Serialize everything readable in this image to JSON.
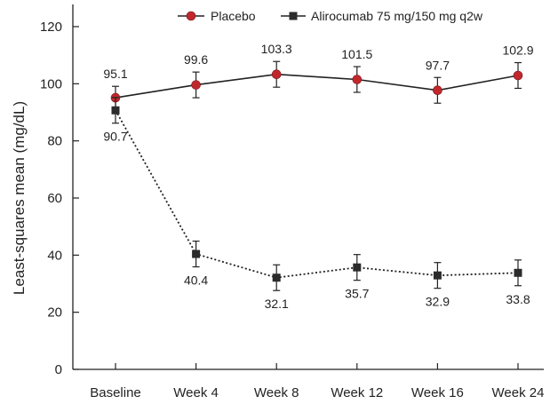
{
  "chart_data": {
    "type": "line",
    "title": "",
    "xlabel": "",
    "ylabel": "Least-squares mean (mg/dL)",
    "ylim": [
      0,
      120
    ],
    "yticks": [
      0,
      20,
      40,
      60,
      80,
      100,
      120
    ],
    "grid": false,
    "legend_position": "top",
    "categories": [
      "Baseline",
      "Week 4",
      "Week 8",
      "Week 12",
      "Week 16",
      "Week 24"
    ],
    "series": [
      {
        "name": "Placebo",
        "color": "#c0282d",
        "marker": "circle",
        "line_style": "solid",
        "values": [
          95.1,
          99.6,
          103.3,
          101.5,
          97.7,
          102.9
        ],
        "value_labels": [
          "95.1",
          "99.6",
          "103.3",
          "101.5",
          "97.7",
          "102.9"
        ],
        "error": [
          4,
          4.5,
          4.5,
          4.5,
          4.5,
          4.5
        ]
      },
      {
        "name": "Alirocumab 75 mg/150 mg q2w",
        "color": "#2b2b2b",
        "marker": "square",
        "line_style": "dotted",
        "values": [
          90.7,
          40.4,
          32.1,
          35.7,
          32.9,
          33.8
        ],
        "value_labels": [
          "90.7",
          "40.4",
          "32.1",
          "35.7",
          "32.9",
          "33.8"
        ],
        "error": [
          4.5,
          4.5,
          4.5,
          4.5,
          4.5,
          4.5
        ]
      }
    ]
  }
}
